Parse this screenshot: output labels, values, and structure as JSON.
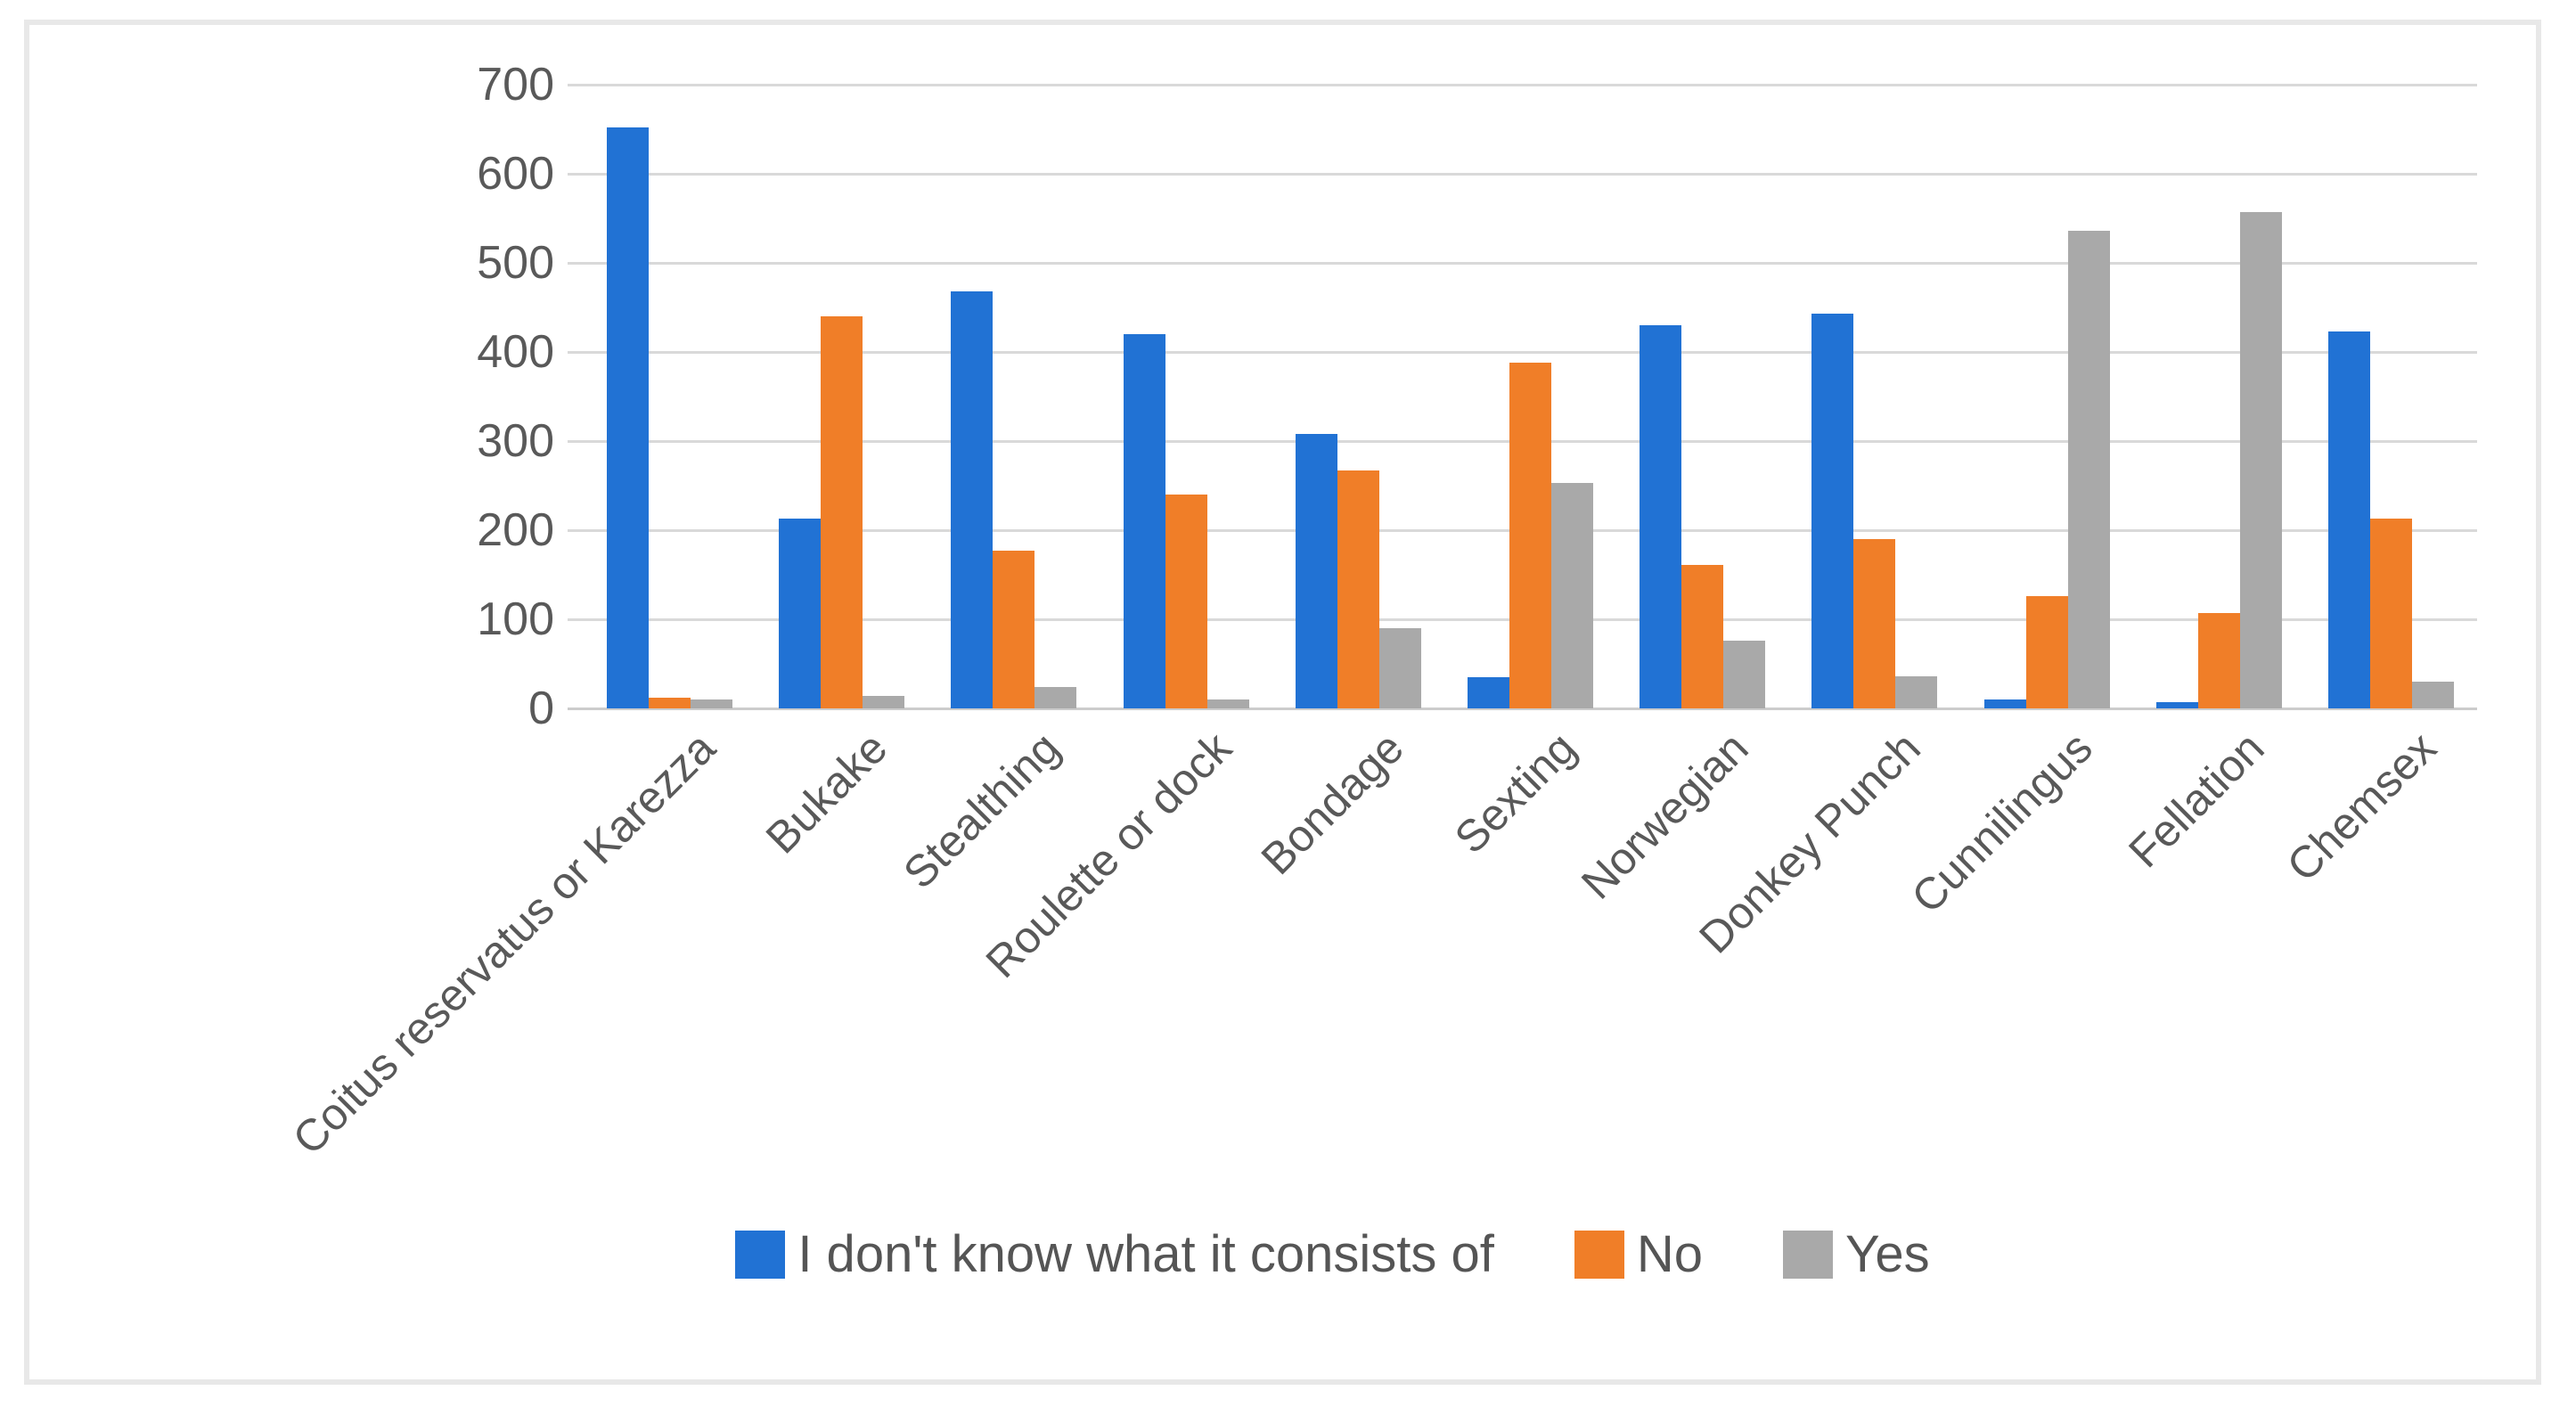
{
  "page": {
    "background": "#ffffff",
    "panel_border_color": "#e8e8e8"
  },
  "chart_data": {
    "type": "bar",
    "title": "",
    "xlabel": "",
    "ylabel": "",
    "categories": [
      "Coitus reservatus or Karezza",
      "Bukake",
      "Stealthing",
      "Roulette or dock",
      "Bondage",
      "Sexting",
      "Norwegian",
      "Donkey Punch",
      "Cunnilingus",
      "Fellation",
      "Chemsex"
    ],
    "series": [
      {
        "name": "I don't know what it consists of",
        "color": "#2172d4",
        "values": [
          652,
          213,
          468,
          420,
          308,
          35,
          430,
          443,
          10,
          7,
          423
        ]
      },
      {
        "name": "No",
        "color": "#f07e28",
        "values": [
          12,
          440,
          177,
          240,
          267,
          388,
          161,
          190,
          126,
          107,
          213
        ]
      },
      {
        "name": "Yes",
        "color": "#a9a9a9",
        "values": [
          10,
          14,
          24,
          10,
          90,
          253,
          76,
          36,
          536,
          557,
          30
        ]
      }
    ],
    "ylim": [
      0,
      700
    ],
    "yticks": [
      0,
      100,
      200,
      300,
      400,
      500,
      600,
      700
    ],
    "grid": true,
    "gridline_color": "#d9d9d9",
    "axis_text_color": "#595959",
    "legend_position": "bottom",
    "x_label_rotation_deg": -45
  }
}
